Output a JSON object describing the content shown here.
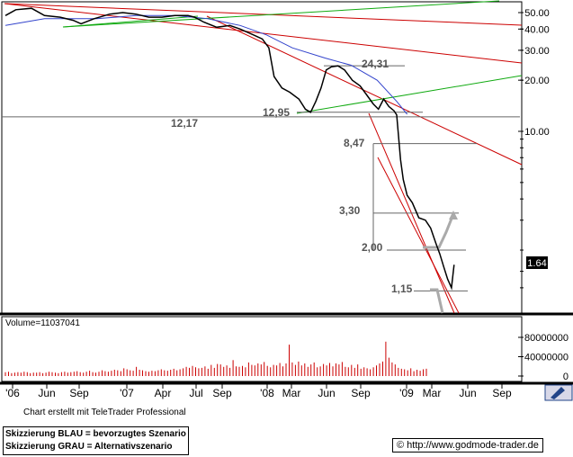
{
  "chart_data": {
    "type": "line",
    "price_scale": "log",
    "price_ticks": [
      "50.00",
      "40.00",
      "30.00",
      "20.00",
      "10.00"
    ],
    "current_price": "1.64",
    "x_tick_labels": [
      "'06",
      "Jun",
      "Sep",
      "'07",
      "Apr",
      "Jul",
      "Sep",
      "'08",
      "Mar",
      "Jun",
      "Sep",
      "'09",
      "Mar",
      "Jun",
      "Sep"
    ],
    "levels": [
      {
        "label": "12,17",
        "value": 12.17
      },
      {
        "label": "12,95",
        "value": 12.95
      },
      {
        "label": "24,31",
        "value": 24.31
      },
      {
        "label": "8,47",
        "value": 8.47
      },
      {
        "label": "3,30",
        "value": 3.3
      },
      {
        "label": "2,00",
        "value": 2.0
      },
      {
        "label": "1,15",
        "value": 1.15
      }
    ],
    "price_series": [
      [
        0,
        48
      ],
      [
        0.08,
        52
      ],
      [
        0.2,
        53
      ],
      [
        0.3,
        48
      ],
      [
        0.42,
        47
      ],
      [
        0.52,
        45
      ],
      [
        0.58,
        43
      ],
      [
        0.68,
        46
      ],
      [
        0.8,
        49
      ],
      [
        0.9,
        50
      ],
      [
        1.0,
        49
      ],
      [
        1.1,
        47
      ],
      [
        1.2,
        47
      ],
      [
        1.3,
        48
      ],
      [
        1.4,
        48
      ],
      [
        1.45,
        47
      ],
      [
        1.52,
        44
      ],
      [
        1.62,
        41
      ],
      [
        1.72,
        42
      ],
      [
        1.8,
        40
      ],
      [
        1.9,
        37
      ],
      [
        1.97,
        35
      ],
      [
        2.02,
        31
      ],
      [
        2.06,
        21
      ],
      [
        2.12,
        18
      ],
      [
        2.18,
        17
      ],
      [
        2.25,
        15.5
      ],
      [
        2.3,
        13.5
      ],
      [
        2.34,
        12.95
      ],
      [
        2.38,
        15
      ],
      [
        2.42,
        18
      ],
      [
        2.46,
        23
      ],
      [
        2.5,
        24
      ],
      [
        2.55,
        24.3
      ],
      [
        2.6,
        23
      ],
      [
        2.66,
        20
      ],
      [
        2.72,
        18.5
      ],
      [
        2.78,
        16
      ],
      [
        2.82,
        14.5
      ],
      [
        2.86,
        13.5
      ],
      [
        2.9,
        15.5
      ],
      [
        2.94,
        14
      ],
      [
        2.96,
        13.6
      ],
      [
        2.98,
        13.2
      ],
      [
        3.0,
        12.5
      ],
      [
        3.03,
        6.8
      ],
      [
        3.05,
        5.2
      ],
      [
        3.08,
        4.2
      ],
      [
        3.12,
        3.8
      ],
      [
        3.17,
        3.1
      ],
      [
        3.22,
        3.0
      ],
      [
        3.26,
        2.7
      ],
      [
        3.3,
        2.2
      ],
      [
        3.33,
        1.9
      ],
      [
        3.36,
        1.6
      ],
      [
        3.39,
        1.35
      ],
      [
        3.42,
        1.2
      ],
      [
        3.44,
        1.64
      ]
    ],
    "moving_average": [
      [
        0,
        42
      ],
      [
        0.3,
        46
      ],
      [
        0.7,
        46
      ],
      [
        1.0,
        48
      ],
      [
        1.3,
        48
      ],
      [
        1.55,
        46
      ],
      [
        1.8,
        42
      ],
      [
        2.0,
        37
      ],
      [
        2.2,
        31
      ],
      [
        2.45,
        27
      ],
      [
        2.65,
        24.5
      ],
      [
        2.85,
        20
      ],
      [
        3.0,
        15
      ],
      [
        3.08,
        12.6
      ]
    ],
    "volume_ticks": [
      "80000000",
      "40000000",
      "0"
    ],
    "volume_max": 80000000,
    "volume_values": [
      8,
      9,
      6,
      7,
      8,
      7,
      9,
      8,
      6,
      7,
      7,
      8,
      6,
      7,
      9,
      8,
      7,
      6,
      8,
      9,
      7,
      8,
      9,
      10,
      8,
      7,
      9,
      11,
      8,
      7,
      9,
      12,
      10,
      9,
      11,
      13,
      12,
      10,
      16,
      14,
      12,
      11,
      19,
      13,
      12,
      10,
      9,
      11,
      10,
      12,
      14,
      12,
      11,
      13,
      15,
      12,
      14,
      16,
      19,
      17,
      21,
      18,
      16,
      17,
      20,
      15,
      23,
      17,
      25,
      24,
      19,
      22,
      17,
      33,
      20,
      19,
      21,
      18,
      28,
      23,
      22,
      26,
      24,
      29,
      21,
      18,
      23,
      22,
      27,
      20,
      26,
      65,
      28,
      23,
      30,
      22,
      26,
      19,
      24,
      28,
      18,
      20,
      25,
      22,
      27,
      20,
      26,
      24,
      29,
      19,
      18,
      23,
      17,
      24,
      15,
      18,
      16,
      14,
      18,
      22,
      26,
      30,
      71,
      38,
      28,
      24,
      17,
      15,
      14,
      12,
      16,
      10,
      13,
      11,
      14,
      15
    ],
    "volume_label": "Volume=11037041"
  },
  "footer": {
    "credit": "Chart erstellt mit TeleTrader Professional",
    "legend_line1": "Skizzierung BLAU = bevorzugtes Szenario",
    "legend_line2": "Skizzierung GRAU = Alternativszenario",
    "url": "© http://www.godmode-trader.de"
  },
  "colors": {
    "price": "#000000",
    "moving_average": "#3344cc",
    "trend_red": "#cc0000",
    "trend_green": "#11aa11",
    "level_gray": "#666666",
    "scenario_gray": "#aaaaaa",
    "current_price_box": "#000000",
    "navigator": "#224488"
  }
}
